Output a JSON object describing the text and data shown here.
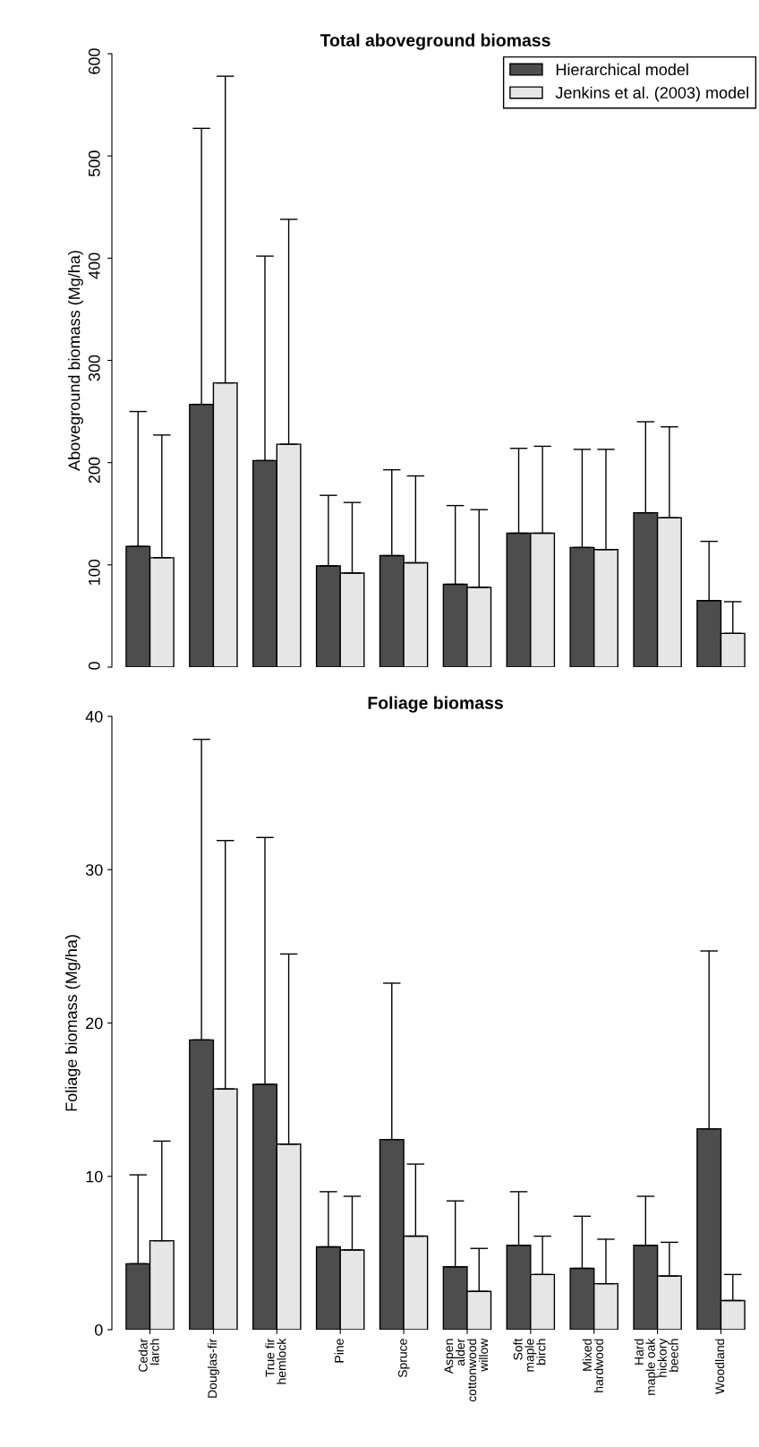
{
  "chart_data": [
    {
      "type": "bar",
      "title": "Total aboveground biomass",
      "ylabel": "Aboveground biomass (Mg/ha)",
      "categories": [
        null,
        null,
        null,
        null,
        null,
        null,
        null,
        null,
        null,
        null
      ],
      "series": [
        {
          "name": "Hierarchical model",
          "color": "#4d4d4d",
          "values": [
            118,
            257,
            202,
            99,
            109,
            81,
            131,
            117,
            151,
            65
          ],
          "errors": [
            [
              118,
              250
            ],
            [
              257,
              527
            ],
            [
              202,
              402
            ],
            [
              99,
              168
            ],
            [
              109,
              193
            ],
            [
              81,
              158
            ],
            [
              131,
              214
            ],
            [
              117,
              213
            ],
            [
              151,
              240
            ],
            [
              65,
              123
            ]
          ]
        },
        {
          "name": "Jenkins et al. (2003) model",
          "color": "#e6e6e6",
          "values": [
            107,
            278,
            218,
            92,
            102,
            78,
            131,
            115,
            146,
            33
          ],
          "errors": [
            [
              107,
              227
            ],
            [
              278,
              578
            ],
            [
              218,
              438
            ],
            [
              92,
              161
            ],
            [
              102,
              187
            ],
            [
              78,
              154
            ],
            [
              131,
              216
            ],
            [
              115,
              213
            ],
            [
              146,
              235
            ],
            [
              33,
              64
            ]
          ]
        }
      ],
      "ylim": [
        0,
        600
      ],
      "yticks": [
        0,
        100,
        200,
        300,
        400,
        500,
        600
      ],
      "legend": "top right",
      "grid": false,
      "tick_labels": "y"
    },
    {
      "type": "bar",
      "title": "Foliage biomass",
      "ylabel": "Foliage biomass (Mg/ha)",
      "categories": [
        "Cedar\nlarch",
        "Douglas-fir",
        "True fir\nhemlock",
        "Pine",
        "Spruce",
        "Aspen\nalder\ncottonwood\nwillow",
        "Soft\nmaple\nbirch",
        "Mixed\nhardwood",
        "Hard\nmaple oak\nhickory\nbeech",
        "Woodland"
      ],
      "series": [
        {
          "color": "#4d4d4d",
          "values": [
            4.3,
            18.9,
            16.0,
            5.4,
            12.4,
            4.1,
            5.5,
            4.0,
            5.5,
            13.1
          ],
          "errors": [
            [
              4.3,
              10.1
            ],
            [
              18.9,
              38.5
            ],
            [
              16.0,
              32.1
            ],
            [
              5.4,
              9.0
            ],
            [
              12.4,
              22.6
            ],
            [
              4.1,
              8.4
            ],
            [
              5.5,
              9.0
            ],
            [
              4.0,
              7.4
            ],
            [
              5.5,
              8.7
            ],
            [
              13.1,
              24.7
            ]
          ]
        },
        {
          "color": "#e6e6e6",
          "values": [
            5.8,
            15.7,
            12.1,
            5.2,
            6.1,
            2.5,
            3.6,
            3.0,
            3.5,
            1.9
          ],
          "errors": [
            [
              5.8,
              12.3
            ],
            [
              15.7,
              31.9
            ],
            [
              12.1,
              24.5
            ],
            [
              5.2,
              8.7
            ],
            [
              6.1,
              10.8
            ],
            [
              2.5,
              5.3
            ],
            [
              3.6,
              6.1
            ],
            [
              3.0,
              5.9
            ],
            [
              3.5,
              5.7
            ],
            [
              1.9,
              3.6
            ]
          ]
        }
      ],
      "ylim": [
        0,
        40
      ],
      "yticks": [
        0,
        10,
        20,
        30,
        40
      ],
      "legend": false,
      "grid": false
    }
  ]
}
